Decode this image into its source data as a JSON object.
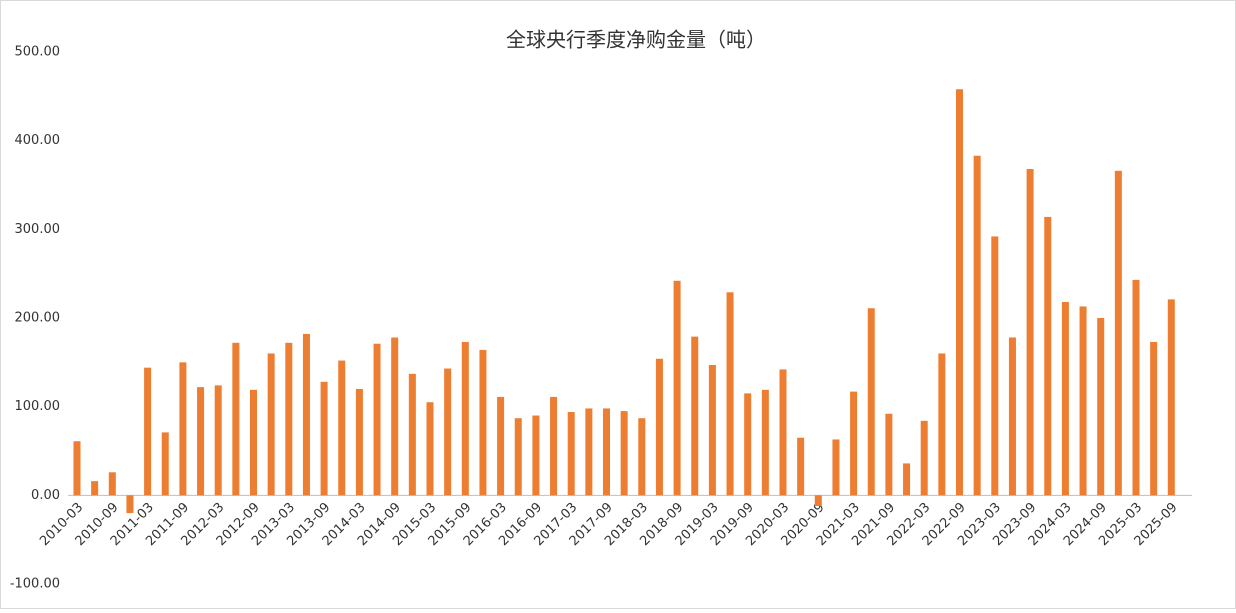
{
  "chart_data": {
    "type": "bar",
    "title": "全球央行季度净购金量（吨）",
    "categories": [
      "2010-03",
      null,
      "2010-09",
      null,
      "2011-03",
      null,
      "2011-09",
      null,
      "2012-03",
      null,
      "2012-09",
      null,
      "2013-03",
      null,
      "2013-09",
      null,
      "2014-03",
      null,
      "2014-09",
      null,
      "2015-03",
      null,
      "2015-09",
      null,
      "2016-03",
      null,
      "2016-09",
      null,
      "2017-03",
      null,
      "2017-09",
      null,
      "2018-03",
      null,
      "2018-09",
      null,
      "2019-03",
      null,
      "2019-09",
      null,
      "2020-03",
      null,
      "2020-09",
      null,
      "2021-03",
      null,
      "2021-09",
      null,
      "2022-03",
      null,
      "2022-09",
      null,
      "2023-03",
      null,
      "2023-09",
      null,
      "2024-03",
      null,
      "2024-09",
      null,
      "2025-03",
      null,
      "2025-09"
    ],
    "values": [
      61,
      16,
      26,
      -20,
      144,
      71,
      150,
      122,
      124,
      172,
      119,
      160,
      172,
      182,
      128,
      152,
      120,
      171,
      178,
      137,
      105,
      143,
      173,
      164,
      111,
      87,
      90,
      111,
      94,
      98,
      98,
      95,
      87,
      154,
      242,
      179,
      147,
      229,
      115,
      119,
      142,
      65,
      -12,
      63,
      117,
      211,
      92,
      36,
      84,
      160,
      458,
      383,
      292,
      178,
      368,
      314,
      218,
      213,
      200,
      366,
      243,
      173,
      221
    ],
    "color": "#ed7d31",
    "ylim": [
      -100,
      500
    ],
    "yticks": [
      {
        "value": -100,
        "label": "-100.00"
      },
      {
        "value": 0,
        "label": "0.00"
      },
      {
        "value": 100,
        "label": "100.00"
      },
      {
        "value": 200,
        "label": "200.00"
      },
      {
        "value": 300,
        "label": "300.00"
      },
      {
        "value": 400,
        "label": "400.00"
      },
      {
        "value": 500,
        "label": "500.00"
      }
    ],
    "grid": false
  }
}
